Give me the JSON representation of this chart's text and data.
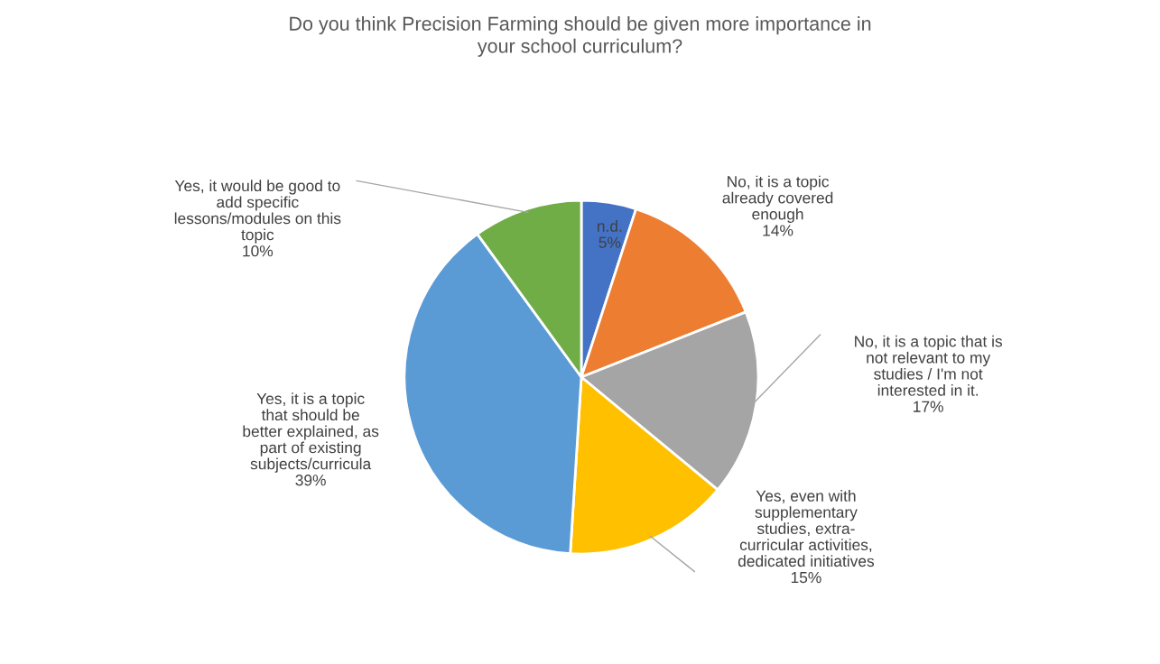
{
  "chart_data": {
    "type": "pie",
    "title": "Do you think Precision Farming should be given more importance in\nyour school curriculum?",
    "categories": [
      "n.d.",
      "No, it is a topic\nalready covered\nenough",
      "No, it is a topic that is\nnot relevant to my\nstudies / I'm not\ninterested in it.",
      "Yes, even with\nsupplementary\nstudies, extra-\ncurricular activities,\ndedicated initiatives",
      "Yes, it is a topic\nthat should be\nbetter explained, as\npart of existing\nsubjects/curricula",
      "Yes, it would be good to\nadd specific\nlessons/modules on this\ntopic"
    ],
    "values": [
      5,
      14,
      17,
      15,
      39,
      10
    ],
    "value_labels": [
      "5%",
      "14%",
      "17%",
      "15%",
      "39%",
      "10%"
    ],
    "colors": [
      "#4472c4",
      "#ed7d31",
      "#a5a5a5",
      "#ffc000",
      "#5b9bd5",
      "#70ad47"
    ],
    "legend": false
  }
}
